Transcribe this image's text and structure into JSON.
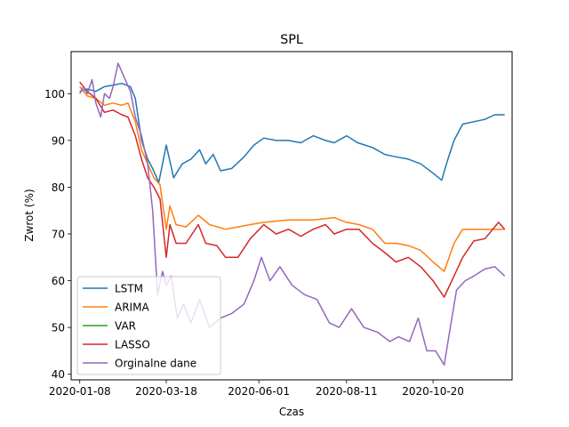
{
  "chart_data": {
    "type": "line",
    "title": "SPL",
    "xlabel": "Czas",
    "ylabel": "Zwrot (%)",
    "xlim": [
      "2020-01-01",
      "2020-12-23"
    ],
    "ylim": [
      38.8,
      109.0
    ],
    "xticks": [
      "2020-01-08",
      "2020-03-18",
      "2020-06-01",
      "2020-08-11",
      "2020-10-20"
    ],
    "yticks": [
      40,
      50,
      60,
      70,
      80,
      90,
      100
    ],
    "grid": false,
    "legend_position": "lower left",
    "series": [
      {
        "name": " LSTM",
        "color": "#1f77b4",
        "points": [
          [
            "2020-01-08",
            100.5
          ],
          [
            "2020-01-14",
            101.0
          ],
          [
            "2020-01-21",
            100.5
          ],
          [
            "2020-01-28",
            101.5
          ],
          [
            "2020-02-04",
            101.8
          ],
          [
            "2020-02-11",
            102.2
          ],
          [
            "2020-02-18",
            101.5
          ],
          [
            "2020-02-22",
            99.0
          ],
          [
            "2020-02-27",
            90.0
          ],
          [
            "2020-03-03",
            86.0
          ],
          [
            "2020-03-07",
            84.0
          ],
          [
            "2020-03-12",
            81.0
          ],
          [
            "2020-03-18",
            89.0
          ],
          [
            "2020-03-24",
            82.0
          ],
          [
            "2020-03-31",
            85.0
          ],
          [
            "2020-04-07",
            86.0
          ],
          [
            "2020-04-14",
            88.0
          ],
          [
            "2020-04-19",
            85.0
          ],
          [
            "2020-04-25",
            87.0
          ],
          [
            "2020-05-01",
            83.5
          ],
          [
            "2020-05-10",
            84.0
          ],
          [
            "2020-05-20",
            86.5
          ],
          [
            "2020-05-28",
            89.0
          ],
          [
            "2020-06-05",
            90.5
          ],
          [
            "2020-06-15",
            90.0
          ],
          [
            "2020-06-25",
            90.0
          ],
          [
            "2020-07-05",
            89.5
          ],
          [
            "2020-07-15",
            91.0
          ],
          [
            "2020-07-25",
            90.0
          ],
          [
            "2020-08-01",
            89.5
          ],
          [
            "2020-08-11",
            91.0
          ],
          [
            "2020-08-20",
            89.5
          ],
          [
            "2020-09-01",
            88.5
          ],
          [
            "2020-09-11",
            87.0
          ],
          [
            "2020-09-20",
            86.5
          ],
          [
            "2020-09-30",
            86.0
          ],
          [
            "2020-10-10",
            85.0
          ],
          [
            "2020-10-20",
            83.0
          ],
          [
            "2020-10-27",
            81.5
          ],
          [
            "2020-11-01",
            86.0
          ],
          [
            "2020-11-06",
            90.0
          ],
          [
            "2020-11-13",
            93.5
          ],
          [
            "2020-11-22",
            94.0
          ],
          [
            "2020-12-01",
            94.5
          ],
          [
            "2020-12-09",
            95.5
          ],
          [
            "2020-12-17",
            95.5
          ]
        ]
      },
      {
        "name": "ARIMA",
        "color": "#ff7f0e",
        "points": [
          [
            "2020-01-08",
            101.5
          ],
          [
            "2020-01-14",
            99.5
          ],
          [
            "2020-01-21",
            99.0
          ],
          [
            "2020-01-28",
            97.5
          ],
          [
            "2020-02-04",
            98.0
          ],
          [
            "2020-02-11",
            97.5
          ],
          [
            "2020-02-16",
            98.0
          ],
          [
            "2020-02-22",
            94.0
          ],
          [
            "2020-02-27",
            88.0
          ],
          [
            "2020-03-03",
            85.0
          ],
          [
            "2020-03-08",
            82.0
          ],
          [
            "2020-03-13",
            80.5
          ],
          [
            "2020-03-18",
            71.0
          ],
          [
            "2020-03-21",
            76.0
          ],
          [
            "2020-03-26",
            72.0
          ],
          [
            "2020-04-03",
            71.5
          ],
          [
            "2020-04-13",
            74.0
          ],
          [
            "2020-04-22",
            72.0
          ],
          [
            "2020-05-05",
            71.0
          ],
          [
            "2020-05-15",
            71.5
          ],
          [
            "2020-05-25",
            72.0
          ],
          [
            "2020-06-05",
            72.5
          ],
          [
            "2020-06-25",
            73.0
          ],
          [
            "2020-07-15",
            73.0
          ],
          [
            "2020-08-01",
            73.5
          ],
          [
            "2020-08-11",
            72.5
          ],
          [
            "2020-08-21",
            72.0
          ],
          [
            "2020-09-01",
            71.0
          ],
          [
            "2020-09-11",
            68.0
          ],
          [
            "2020-09-20",
            68.0
          ],
          [
            "2020-09-30",
            67.5
          ],
          [
            "2020-10-10",
            66.5
          ],
          [
            "2020-10-20",
            64.0
          ],
          [
            "2020-10-29",
            62.0
          ],
          [
            "2020-11-06",
            68.0
          ],
          [
            "2020-11-13",
            71.0
          ],
          [
            "2020-11-22",
            71.0
          ],
          [
            "2020-12-01",
            71.0
          ],
          [
            "2020-12-09",
            71.0
          ],
          [
            "2020-12-17",
            71.0
          ]
        ]
      },
      {
        "name": "VAR",
        "color": "#2ca02c",
        "points": []
      },
      {
        "name": "LASSO",
        "color": "#d62728",
        "points": [
          [
            "2020-01-08",
            102.5
          ],
          [
            "2020-01-14",
            100.5
          ],
          [
            "2020-01-21",
            99.0
          ],
          [
            "2020-01-28",
            96.0
          ],
          [
            "2020-02-04",
            96.5
          ],
          [
            "2020-02-11",
            95.5
          ],
          [
            "2020-02-16",
            95.0
          ],
          [
            "2020-02-22",
            91.0
          ],
          [
            "2020-02-27",
            86.0
          ],
          [
            "2020-03-03",
            82.0
          ],
          [
            "2020-03-08",
            80.0
          ],
          [
            "2020-03-13",
            77.5
          ],
          [
            "2020-03-18",
            65.0
          ],
          [
            "2020-03-21",
            72.0
          ],
          [
            "2020-03-26",
            68.0
          ],
          [
            "2020-04-03",
            68.0
          ],
          [
            "2020-04-13",
            72.0
          ],
          [
            "2020-04-19",
            68.0
          ],
          [
            "2020-04-28",
            67.5
          ],
          [
            "2020-05-05",
            65.0
          ],
          [
            "2020-05-15",
            65.0
          ],
          [
            "2020-05-25",
            69.0
          ],
          [
            "2020-06-05",
            72.0
          ],
          [
            "2020-06-15",
            70.0
          ],
          [
            "2020-06-25",
            71.0
          ],
          [
            "2020-07-05",
            69.5
          ],
          [
            "2020-07-15",
            71.0
          ],
          [
            "2020-07-25",
            72.0
          ],
          [
            "2020-08-01",
            70.0
          ],
          [
            "2020-08-11",
            71.0
          ],
          [
            "2020-08-21",
            71.0
          ],
          [
            "2020-09-01",
            68.0
          ],
          [
            "2020-09-11",
            66.0
          ],
          [
            "2020-09-20",
            64.0
          ],
          [
            "2020-09-30",
            65.0
          ],
          [
            "2020-10-10",
            63.0
          ],
          [
            "2020-10-20",
            60.0
          ],
          [
            "2020-10-29",
            56.5
          ],
          [
            "2020-11-06",
            61.0
          ],
          [
            "2020-11-13",
            65.0
          ],
          [
            "2020-11-22",
            68.5
          ],
          [
            "2020-12-01",
            69.0
          ],
          [
            "2020-12-09",
            71.5
          ],
          [
            "2020-12-12",
            72.5
          ],
          [
            "2020-12-17",
            71.0
          ]
        ]
      },
      {
        "name": "Orginalne dane",
        "color": "#9467bd",
        "points": [
          [
            "2020-01-08",
            100.0
          ],
          [
            "2020-01-11",
            101.5
          ],
          [
            "2020-01-14",
            100.0
          ],
          [
            "2020-01-18",
            103.0
          ],
          [
            "2020-01-21",
            98.0
          ],
          [
            "2020-01-25",
            95.0
          ],
          [
            "2020-01-28",
            100.0
          ],
          [
            "2020-02-01",
            99.0
          ],
          [
            "2020-02-04",
            101.5
          ],
          [
            "2020-02-08",
            106.5
          ],
          [
            "2020-02-13",
            103.5
          ],
          [
            "2020-02-18",
            100.5
          ],
          [
            "2020-02-22",
            95.0
          ],
          [
            "2020-02-27",
            91.0
          ],
          [
            "2020-03-03",
            85.0
          ],
          [
            "2020-03-07",
            75.0
          ],
          [
            "2020-03-11",
            57.0
          ],
          [
            "2020-03-15",
            62.0
          ],
          [
            "2020-03-18",
            59.0
          ],
          [
            "2020-03-22",
            61.0
          ],
          [
            "2020-03-27",
            52.0
          ],
          [
            "2020-04-01",
            55.0
          ],
          [
            "2020-04-07",
            51.0
          ],
          [
            "2020-04-14",
            56.0
          ],
          [
            "2020-04-22",
            50.0
          ],
          [
            "2020-05-01",
            52.0
          ],
          [
            "2020-05-10",
            53.0
          ],
          [
            "2020-05-20",
            55.0
          ],
          [
            "2020-05-28",
            60.0
          ],
          [
            "2020-06-03",
            65.0
          ],
          [
            "2020-06-10",
            60.0
          ],
          [
            "2020-06-18",
            63.0
          ],
          [
            "2020-06-28",
            59.0
          ],
          [
            "2020-07-08",
            57.0
          ],
          [
            "2020-07-18",
            56.0
          ],
          [
            "2020-07-28",
            51.0
          ],
          [
            "2020-08-05",
            50.0
          ],
          [
            "2020-08-15",
            54.0
          ],
          [
            "2020-08-25",
            50.0
          ],
          [
            "2020-09-05",
            49.0
          ],
          [
            "2020-09-15",
            47.0
          ],
          [
            "2020-09-22",
            48.0
          ],
          [
            "2020-10-01",
            47.0
          ],
          [
            "2020-10-08",
            52.0
          ],
          [
            "2020-10-15",
            45.0
          ],
          [
            "2020-10-22",
            45.0
          ],
          [
            "2020-10-29",
            42.0
          ],
          [
            "2020-11-03",
            50.0
          ],
          [
            "2020-11-08",
            58.0
          ],
          [
            "2020-11-15",
            60.0
          ],
          [
            "2020-11-22",
            61.0
          ],
          [
            "2020-12-01",
            62.5
          ],
          [
            "2020-12-09",
            63.0
          ],
          [
            "2020-12-17",
            61.0
          ]
        ]
      }
    ]
  }
}
